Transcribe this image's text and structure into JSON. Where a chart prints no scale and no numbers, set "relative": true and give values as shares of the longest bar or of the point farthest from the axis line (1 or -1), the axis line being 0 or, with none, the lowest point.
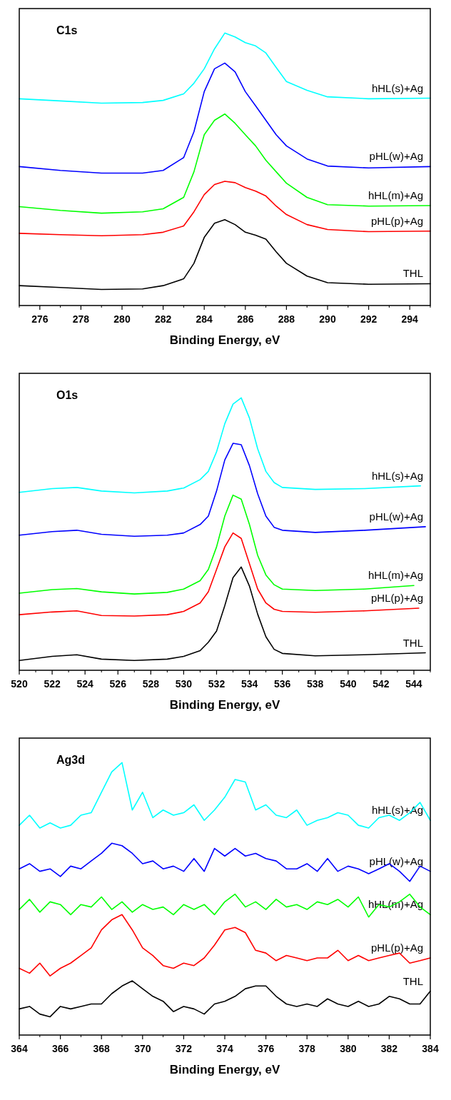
{
  "chart_data": [
    {
      "type": "line",
      "relative": true,
      "annotations": [
        "C1s"
      ],
      "xlabel": "Binding Energy, eV",
      "xlim": [
        275,
        295
      ],
      "xticks": [
        276,
        278,
        280,
        282,
        284,
        286,
        288,
        290,
        292,
        294
      ],
      "x": [
        275,
        277,
        279,
        281,
        282,
        283,
        283.5,
        284,
        284.5,
        285,
        285.5,
        286,
        286.5,
        287,
        287.5,
        288,
        289,
        290,
        292,
        295
      ],
      "series": [
        {
          "name": "hHL(s)+Ag",
          "color": "#00ffff",
          "values": [
            0.759,
            0.751,
            0.743,
            0.745,
            0.753,
            0.777,
            0.816,
            0.869,
            0.942,
            1.0,
            0.986,
            0.965,
            0.953,
            0.927,
            0.874,
            0.822,
            0.79,
            0.766,
            0.759,
            0.761
          ]
        },
        {
          "name": "pHL(w)+Ag",
          "color": "#0000ff",
          "values": [
            0.51,
            0.496,
            0.486,
            0.486,
            0.496,
            0.543,
            0.638,
            0.785,
            0.869,
            0.89,
            0.858,
            0.785,
            0.733,
            0.68,
            0.627,
            0.586,
            0.538,
            0.512,
            0.505,
            0.51
          ]
        },
        {
          "name": "hHL(m)+Ag",
          "color": "#00ff00",
          "values": [
            0.363,
            0.349,
            0.339,
            0.344,
            0.355,
            0.397,
            0.491,
            0.627,
            0.68,
            0.703,
            0.669,
            0.627,
            0.586,
            0.533,
            0.491,
            0.449,
            0.397,
            0.37,
            0.365,
            0.367
          ]
        },
        {
          "name": "pHL(p)+Ag",
          "color": "#ff0000",
          "values": [
            0.265,
            0.26,
            0.256,
            0.26,
            0.269,
            0.292,
            0.344,
            0.407,
            0.444,
            0.456,
            0.451,
            0.433,
            0.42,
            0.402,
            0.365,
            0.334,
            0.297,
            0.279,
            0.271,
            0.273
          ]
        },
        {
          "name": "THL",
          "color": "#000000",
          "values": [
            0.073,
            0.066,
            0.059,
            0.061,
            0.073,
            0.098,
            0.155,
            0.25,
            0.302,
            0.315,
            0.297,
            0.269,
            0.258,
            0.244,
            0.197,
            0.155,
            0.108,
            0.084,
            0.078,
            0.08
          ]
        }
      ]
    },
    {
      "type": "line",
      "relative": true,
      "annotations": [
        "O1s"
      ],
      "xlabel": "Binding Energy, eV",
      "xlim": [
        520,
        545
      ],
      "xticks": [
        520,
        522,
        524,
        526,
        528,
        530,
        532,
        534,
        536,
        538,
        540,
        542,
        544
      ],
      "series": [
        {
          "name": "hHL(s)+Ag",
          "color": "#00ffff",
          "x": [
            520,
            522,
            523.5,
            525,
            527,
            529,
            530,
            531,
            531.5,
            532,
            532.5,
            533,
            533.5,
            534,
            534.5,
            535,
            535.5,
            536,
            538,
            541,
            544.4
          ],
          "values": [
            0.653,
            0.667,
            0.671,
            0.658,
            0.651,
            0.658,
            0.669,
            0.7,
            0.73,
            0.802,
            0.905,
            0.977,
            1.0,
            0.926,
            0.813,
            0.73,
            0.689,
            0.671,
            0.664,
            0.667,
            0.677
          ]
        },
        {
          "name": "pHL(w)+Ag",
          "color": "#0000ff",
          "x": [
            520,
            522,
            523.5,
            525,
            527,
            529,
            530,
            531,
            531.5,
            532,
            532.5,
            533,
            533.5,
            534,
            534.5,
            535,
            535.5,
            536,
            538,
            541,
            544.7
          ],
          "values": [
            0.496,
            0.509,
            0.514,
            0.499,
            0.492,
            0.496,
            0.504,
            0.535,
            0.566,
            0.658,
            0.772,
            0.833,
            0.828,
            0.751,
            0.648,
            0.566,
            0.525,
            0.514,
            0.506,
            0.514,
            0.527
          ]
        },
        {
          "name": "hHL(m)+Ag",
          "color": "#00ff00",
          "x": [
            520,
            522,
            523.5,
            525,
            527,
            529,
            530,
            531,
            531.5,
            532,
            532.5,
            533,
            533.5,
            534,
            534.5,
            535,
            535.5,
            536,
            538,
            541,
            544
          ],
          "values": [
            0.283,
            0.296,
            0.3,
            0.288,
            0.28,
            0.286,
            0.298,
            0.329,
            0.37,
            0.453,
            0.566,
            0.643,
            0.628,
            0.535,
            0.422,
            0.35,
            0.314,
            0.298,
            0.293,
            0.298,
            0.311
          ]
        },
        {
          "name": "pHL(p)+Ag",
          "color": "#ff0000",
          "x": [
            520,
            522,
            523.5,
            525,
            527,
            529,
            530,
            531,
            531.5,
            532,
            532.5,
            533,
            533.5,
            534,
            534.5,
            535,
            535.5,
            536,
            538,
            541,
            544.3
          ],
          "values": [
            0.204,
            0.214,
            0.218,
            0.201,
            0.199,
            0.204,
            0.216,
            0.247,
            0.288,
            0.37,
            0.453,
            0.504,
            0.484,
            0.391,
            0.298,
            0.247,
            0.224,
            0.216,
            0.213,
            0.218,
            0.228
          ]
        },
        {
          "name": "THL",
          "color": "#000000",
          "x": [
            520,
            522,
            523.5,
            525,
            527,
            529,
            530,
            531,
            531.5,
            532,
            532.5,
            533,
            533.5,
            534,
            534.5,
            535,
            535.5,
            536,
            538,
            541,
            544.7
          ],
          "values": [
            0.036,
            0.051,
            0.057,
            0.041,
            0.036,
            0.041,
            0.051,
            0.072,
            0.103,
            0.144,
            0.237,
            0.34,
            0.379,
            0.309,
            0.206,
            0.123,
            0.077,
            0.062,
            0.053,
            0.057,
            0.064
          ]
        }
      ]
    },
    {
      "type": "line",
      "relative": true,
      "annotations": [
        "Ag3d"
      ],
      "xlabel": "Binding Energy, eV",
      "xlim": [
        364,
        384
      ],
      "xticks": [
        364,
        366,
        368,
        370,
        372,
        374,
        376,
        378,
        380,
        382,
        384
      ],
      "x": [
        364,
        364.5,
        365,
        365.5,
        366,
        366.5,
        367,
        367.5,
        368,
        368.5,
        369,
        369.5,
        370,
        370.5,
        371,
        371.5,
        372,
        372.5,
        373,
        373.5,
        374,
        374.5,
        375,
        375.5,
        376,
        376.5,
        377,
        377.5,
        378,
        378.5,
        379,
        379.5,
        380,
        380.5,
        381,
        381.5,
        382,
        382.5,
        383,
        383.5,
        384
      ],
      "series": [
        {
          "name": "hHL(s)+Ag",
          "color": "#00ffff",
          "values": [
            0.77,
            0.807,
            0.76,
            0.779,
            0.76,
            0.77,
            0.807,
            0.816,
            0.891,
            0.966,
            1.0,
            0.826,
            0.891,
            0.798,
            0.826,
            0.807,
            0.816,
            0.845,
            0.788,
            0.826,
            0.873,
            0.938,
            0.929,
            0.826,
            0.845,
            0.807,
            0.798,
            0.826,
            0.77,
            0.788,
            0.798,
            0.816,
            0.807,
            0.77,
            0.76,
            0.798,
            0.807,
            0.788,
            0.816,
            0.854,
            0.788
          ]
        },
        {
          "name": "pHL(w)+Ag",
          "color": "#0000ff",
          "values": [
            0.61,
            0.629,
            0.601,
            0.61,
            0.582,
            0.62,
            0.61,
            0.639,
            0.667,
            0.704,
            0.695,
            0.667,
            0.629,
            0.639,
            0.61,
            0.62,
            0.601,
            0.648,
            0.601,
            0.685,
            0.657,
            0.685,
            0.657,
            0.667,
            0.648,
            0.639,
            0.61,
            0.61,
            0.629,
            0.601,
            0.648,
            0.601,
            0.62,
            0.61,
            0.592,
            0.61,
            0.629,
            0.601,
            0.564,
            0.62,
            0.601
          ]
        },
        {
          "name": "hHL(m)+Ag",
          "color": "#00ff00",
          "values": [
            0.461,
            0.498,
            0.451,
            0.489,
            0.479,
            0.442,
            0.479,
            0.47,
            0.507,
            0.461,
            0.489,
            0.451,
            0.479,
            0.461,
            0.47,
            0.442,
            0.479,
            0.461,
            0.479,
            0.442,
            0.489,
            0.517,
            0.47,
            0.489,
            0.461,
            0.498,
            0.47,
            0.479,
            0.461,
            0.489,
            0.479,
            0.498,
            0.47,
            0.507,
            0.433,
            0.479,
            0.47,
            0.489,
            0.517,
            0.47,
            0.442
          ]
        },
        {
          "name": "pHL(p)+Ag",
          "color": "#ff0000",
          "values": [
            0.245,
            0.227,
            0.264,
            0.217,
            0.245,
            0.264,
            0.292,
            0.32,
            0.386,
            0.423,
            0.442,
            0.386,
            0.32,
            0.292,
            0.255,
            0.245,
            0.264,
            0.255,
            0.283,
            0.33,
            0.386,
            0.395,
            0.376,
            0.311,
            0.301,
            0.273,
            0.292,
            0.283,
            0.273,
            0.283,
            0.283,
            0.311,
            0.273,
            0.292,
            0.273,
            0.283,
            0.292,
            0.301,
            0.264,
            0.273,
            0.283
          ]
        },
        {
          "name": "THL",
          "color": "#000000",
          "values": [
            0.096,
            0.105,
            0.077,
            0.067,
            0.105,
            0.096,
            0.105,
            0.114,
            0.114,
            0.152,
            0.18,
            0.199,
            0.17,
            0.142,
            0.124,
            0.086,
            0.105,
            0.096,
            0.077,
            0.114,
            0.124,
            0.142,
            0.17,
            0.18,
            0.18,
            0.142,
            0.114,
            0.105,
            0.114,
            0.105,
            0.133,
            0.114,
            0.105,
            0.124,
            0.105,
            0.114,
            0.142,
            0.133,
            0.114,
            0.114,
            0.161
          ]
        }
      ]
    }
  ]
}
